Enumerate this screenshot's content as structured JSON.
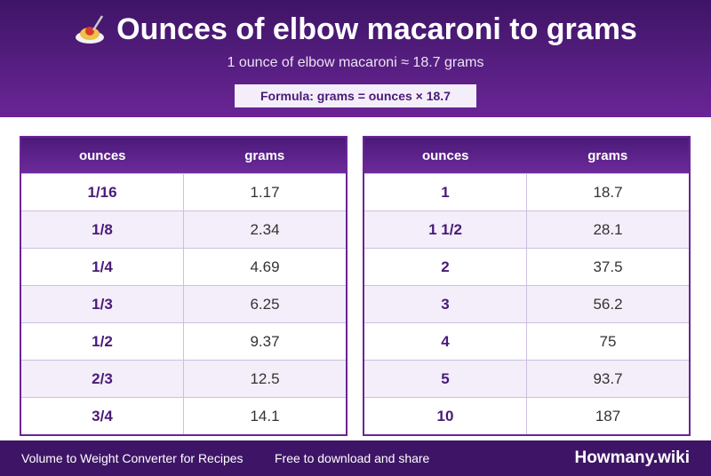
{
  "header": {
    "title": "Ounces of elbow macaroni to grams",
    "subtitle": "1 ounce of elbow macaroni ≈ 18.7 grams",
    "formula": "Formula: grams = ounces × 18.7"
  },
  "tables": [
    {
      "headers": [
        "ounces",
        "grams"
      ],
      "rows": [
        [
          "1/16",
          "1.17"
        ],
        [
          "1/8",
          "2.34"
        ],
        [
          "1/4",
          "4.69"
        ],
        [
          "1/3",
          "6.25"
        ],
        [
          "1/2",
          "9.37"
        ],
        [
          "2/3",
          "12.5"
        ],
        [
          "3/4",
          "14.1"
        ]
      ]
    },
    {
      "headers": [
        "ounces",
        "grams"
      ],
      "rows": [
        [
          "1",
          "18.7"
        ],
        [
          "1 1/2",
          "28.1"
        ],
        [
          "2",
          "37.5"
        ],
        [
          "3",
          "56.2"
        ],
        [
          "4",
          "75"
        ],
        [
          "5",
          "93.7"
        ],
        [
          "10",
          "187"
        ]
      ]
    }
  ],
  "footer": {
    "left": "Volume to Weight Converter for Recipes",
    "middle": "Free to download and share",
    "brand": "Howmany.wiki"
  }
}
